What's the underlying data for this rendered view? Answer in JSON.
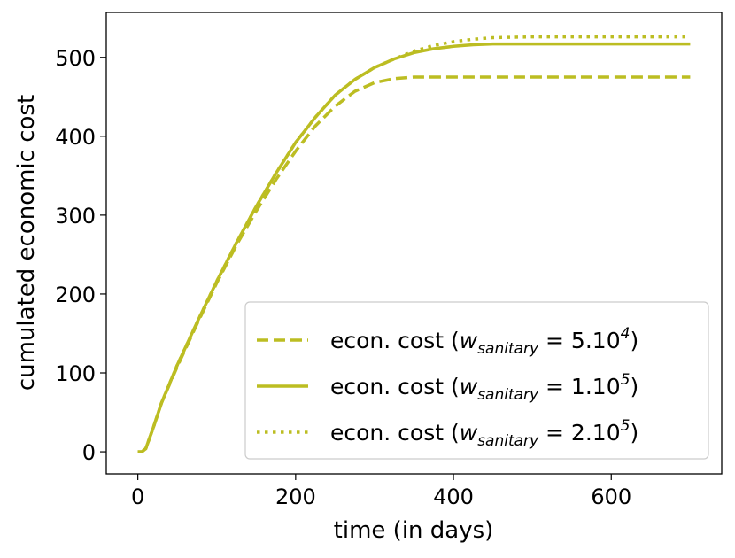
{
  "chart_data": {
    "type": "line",
    "title": "",
    "xlabel": "time (in days)",
    "ylabel": "cumulated economic cost",
    "xlim": [
      -40,
      740
    ],
    "ylim": [
      -28,
      557
    ],
    "xticks": [
      0,
      200,
      400,
      600
    ],
    "yticks": [
      0,
      100,
      200,
      300,
      400,
      500
    ],
    "grid": false,
    "legend_position": "lower-right",
    "color": "#bcbd22",
    "series": [
      {
        "name": "econ. cost (w_sanitary = 5.10^4)",
        "legend_prefix": "econ. cost (",
        "legend_var": "w",
        "legend_sub": "sanitary",
        "legend_mid": " = 5.10",
        "legend_sup": "4",
        "legend_suffix": ")",
        "style": "dashed",
        "x": [
          0,
          5,
          10,
          20,
          30,
          50,
          75,
          100,
          125,
          150,
          175,
          200,
          225,
          250,
          275,
          300,
          325,
          350,
          375,
          400,
          450,
          500,
          600,
          700
        ],
        "y": [
          0,
          0,
          4,
          32,
          62,
          108,
          162,
          214,
          262,
          305,
          345,
          381,
          413,
          438,
          457,
          468,
          473,
          475,
          475,
          475,
          475,
          475,
          475,
          475
        ]
      },
      {
        "name": "econ. cost (w_sanitary = 1.10^5)",
        "legend_prefix": "econ. cost (",
        "legend_var": "w",
        "legend_sub": "sanitary",
        "legend_mid": " = 1.10",
        "legend_sup": "5",
        "legend_suffix": ")",
        "style": "solid",
        "x": [
          0,
          5,
          10,
          20,
          30,
          50,
          75,
          100,
          125,
          150,
          175,
          200,
          225,
          250,
          275,
          300,
          325,
          350,
          375,
          400,
          425,
          450,
          500,
          600,
          700
        ],
        "y": [
          0,
          0,
          4,
          32,
          62,
          110,
          164,
          216,
          265,
          311,
          353,
          392,
          424,
          452,
          472,
          487,
          498,
          506,
          511,
          514,
          516,
          517,
          517,
          517,
          517
        ]
      },
      {
        "name": "econ. cost (w_sanitary = 2.10^5)",
        "legend_prefix": "econ. cost (",
        "legend_var": "w",
        "legend_sub": "sanitary",
        "legend_mid": " = 2.10",
        "legend_sup": "5",
        "legend_suffix": ")",
        "style": "dotted",
        "x": [
          0,
          5,
          10,
          20,
          30,
          50,
          75,
          100,
          125,
          150,
          175,
          200,
          225,
          250,
          275,
          300,
          325,
          350,
          375,
          400,
          425,
          450,
          500,
          600,
          700
        ],
        "y": [
          0,
          0,
          4,
          32,
          62,
          110,
          164,
          216,
          265,
          311,
          353,
          392,
          424,
          452,
          472,
          487,
          498,
          508,
          515,
          520,
          523,
          525,
          526,
          526,
          526
        ]
      }
    ]
  }
}
